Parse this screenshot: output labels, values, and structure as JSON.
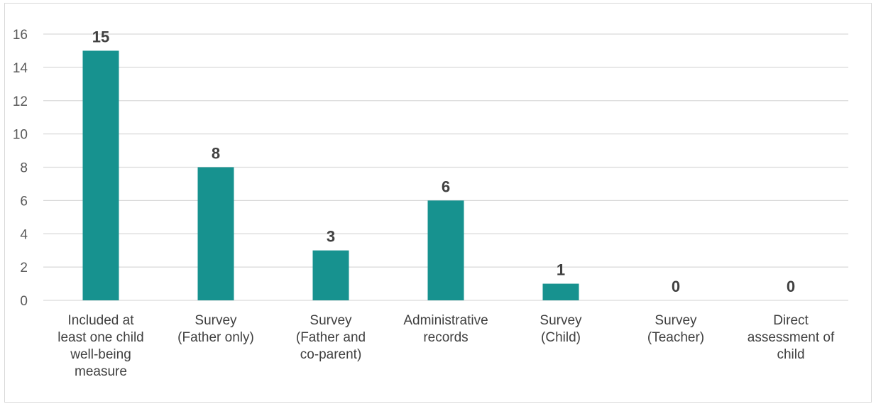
{
  "chart_data": {
    "type": "bar",
    "categories": [
      [
        "Included at",
        "least one child",
        "well-being",
        "measure"
      ],
      [
        "Survey",
        "(Father only)"
      ],
      [
        "Survey",
        "(Father and",
        "co-parent)"
      ],
      [
        "Administrative",
        "records"
      ],
      [
        "Survey",
        "(Child)"
      ],
      [
        "Survey",
        "(Teacher)"
      ],
      [
        "Direct",
        "assessment of",
        "child"
      ]
    ],
    "values": [
      15,
      8,
      3,
      6,
      1,
      0,
      0
    ],
    "data_labels": [
      "15",
      "8",
      "3",
      "6",
      "1",
      "0",
      "0"
    ],
    "y_ticks": [
      "0",
      "2",
      "4",
      "6",
      "8",
      "10",
      "12",
      "14",
      "16"
    ],
    "ylim": [
      0,
      16
    ],
    "grid": true,
    "legend": "none",
    "bar_color": "#17928f",
    "grid_color": "#d9d9d9"
  }
}
